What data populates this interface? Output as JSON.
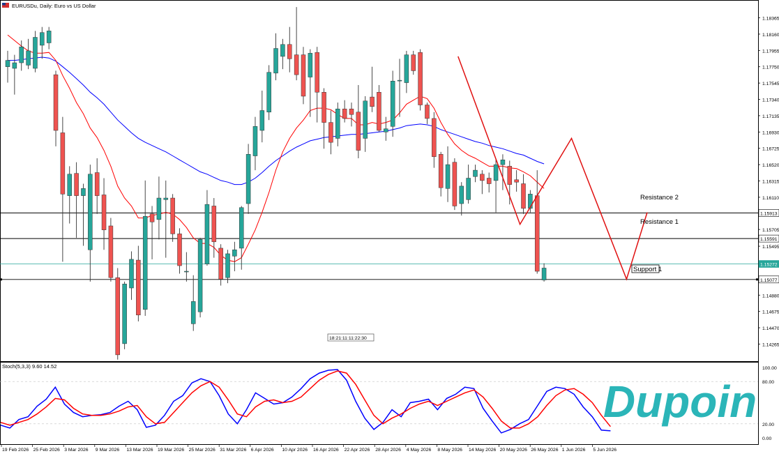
{
  "header": {
    "symbol_title": "EURUSDu, Daily:  Euro vs US Dollar"
  },
  "indicator": {
    "label": "Stoch(5,3,3) 9.60 14.52",
    "levels": [
      "100.00",
      "20.00",
      "0.00"
    ]
  },
  "annotations": {
    "resistance_2": "Resistance 2",
    "resistance_1": "Resistance 1",
    "support_1": "Support 1",
    "time_box": "18:21:11:11:22:30"
  },
  "watermark": {
    "text": "Dupoin",
    "color": "#2bb5b8"
  },
  "colors": {
    "bull": "#26a69a",
    "bear": "#ef5350",
    "ma_fast": "#ff0000",
    "ma_slow": "#0000ff",
    "stoch_k": "#0000ff",
    "stoch_d": "#ff0000",
    "current_price_line": "#26a69a"
  },
  "chart_data": [
    {
      "type": "candlestick",
      "title": "EURUSDu, Daily:  Euro vs US Dollar",
      "y_ticks": [
        "1.18365",
        "1.18160",
        "1.17955",
        "1.17750",
        "1.17545",
        "1.17340",
        "1.17135",
        "1.16930",
        "1.16725",
        "1.16520",
        "1.16315",
        "1.16110",
        "1.15705",
        "1.15495",
        "1.14880",
        "1.14675",
        "1.14470",
        "1.14265"
      ],
      "y_range": [
        1.1405,
        1.1858
      ],
      "price_labels": [
        {
          "value": 1.15913,
          "label": "1.15913",
          "style": "resistance"
        },
        {
          "value": 1.15591,
          "label": "1.15591",
          "style": "resistance"
        },
        {
          "value": 1.15272,
          "label": "1.15272",
          "style": "current"
        },
        {
          "value": 1.15077,
          "label": "1.15077",
          "style": "support"
        }
      ],
      "x_labels": [
        "19 Feb 2026",
        "25 Feb 2026",
        "3 Mar 2026",
        "9 Mar 2026",
        "13 Mar 2026",
        "19 Mar 2026",
        "25 Mar 2026",
        "31 Mar 2026",
        "6 Apr 2026",
        "10 Apr 2026",
        "16 Apr 2026",
        "22 Apr 2026",
        "28 Apr 2026",
        "4 May 2026",
        "8 May 2026",
        "14 May 2026",
        "20 May 2026",
        "26 May 2026",
        "1 Jun 2026",
        "5 Jun 2026"
      ],
      "candles": [
        {
          "o": 1.1775,
          "h": 1.1795,
          "l": 1.1755,
          "c": 1.1783
        },
        {
          "o": 1.1773,
          "h": 1.179,
          "l": 1.174,
          "c": 1.178
        },
        {
          "o": 1.178,
          "h": 1.1808,
          "l": 1.177,
          "c": 1.18
        },
        {
          "o": 1.1777,
          "h": 1.181,
          "l": 1.1772,
          "c": 1.1795
        },
        {
          "o": 1.1773,
          "h": 1.182,
          "l": 1.1768,
          "c": 1.1812
        },
        {
          "o": 1.1802,
          "h": 1.1825,
          "l": 1.1785,
          "c": 1.1818
        },
        {
          "o": 1.1805,
          "h": 1.1825,
          "l": 1.1797,
          "c": 1.182
        },
        {
          "o": 1.1765,
          "h": 1.177,
          "l": 1.1675,
          "c": 1.1695
        },
        {
          "o": 1.1692,
          "h": 1.1712,
          "l": 1.153,
          "c": 1.1615
        },
        {
          "o": 1.1613,
          "h": 1.165,
          "l": 1.1578,
          "c": 1.164
        },
        {
          "o": 1.1641,
          "h": 1.1655,
          "l": 1.156,
          "c": 1.1613
        },
        {
          "o": 1.1613,
          "h": 1.1628,
          "l": 1.155,
          "c": 1.1622
        },
        {
          "o": 1.1545,
          "h": 1.1652,
          "l": 1.1505,
          "c": 1.164
        },
        {
          "o": 1.1642,
          "h": 1.166,
          "l": 1.159,
          "c": 1.1613
        },
        {
          "o": 1.1614,
          "h": 1.1635,
          "l": 1.1545,
          "c": 1.157
        },
        {
          "o": 1.1575,
          "h": 1.1585,
          "l": 1.1505,
          "c": 1.151
        },
        {
          "o": 1.151,
          "h": 1.1522,
          "l": 1.1407,
          "c": 1.1413
        },
        {
          "o": 1.1427,
          "h": 1.1505,
          "l": 1.142,
          "c": 1.1502
        },
        {
          "o": 1.1497,
          "h": 1.1543,
          "l": 1.1482,
          "c": 1.1533
        },
        {
          "o": 1.1532,
          "h": 1.155,
          "l": 1.1455,
          "c": 1.1463
        },
        {
          "o": 1.147,
          "h": 1.1632,
          "l": 1.1462,
          "c": 1.1587
        },
        {
          "o": 1.159,
          "h": 1.16,
          "l": 1.1533,
          "c": 1.158
        },
        {
          "o": 1.1583,
          "h": 1.1637,
          "l": 1.1558,
          "c": 1.161
        },
        {
          "o": 1.1608,
          "h": 1.1632,
          "l": 1.1535,
          "c": 1.161
        },
        {
          "o": 1.161,
          "h": 1.1615,
          "l": 1.1555,
          "c": 1.1565
        },
        {
          "o": 1.1565,
          "h": 1.1572,
          "l": 1.1515,
          "c": 1.1525
        },
        {
          "o": 1.1518,
          "h": 1.1542,
          "l": 1.1505,
          "c": 1.1518
        },
        {
          "o": 1.1452,
          "h": 1.1513,
          "l": 1.1443,
          "c": 1.148
        },
        {
          "o": 1.1467,
          "h": 1.156,
          "l": 1.146,
          "c": 1.1558
        },
        {
          "o": 1.1527,
          "h": 1.162,
          "l": 1.1525,
          "c": 1.1602
        },
        {
          "o": 1.16,
          "h": 1.161,
          "l": 1.1535,
          "c": 1.1555
        },
        {
          "o": 1.1547,
          "h": 1.1552,
          "l": 1.15,
          "c": 1.1508
        },
        {
          "o": 1.151,
          "h": 1.1545,
          "l": 1.1503,
          "c": 1.154
        },
        {
          "o": 1.1537,
          "h": 1.1555,
          "l": 1.1518,
          "c": 1.1545
        },
        {
          "o": 1.1547,
          "h": 1.16,
          "l": 1.152,
          "c": 1.1598
        },
        {
          "o": 1.1603,
          "h": 1.1678,
          "l": 1.159,
          "c": 1.1665
        },
        {
          "o": 1.1663,
          "h": 1.1712,
          "l": 1.1645,
          "c": 1.17
        },
        {
          "o": 1.1695,
          "h": 1.1745,
          "l": 1.168,
          "c": 1.172
        },
        {
          "o": 1.1718,
          "h": 1.1777,
          "l": 1.1708,
          "c": 1.1768
        },
        {
          "o": 1.1767,
          "h": 1.1817,
          "l": 1.1758,
          "c": 1.1798
        },
        {
          "o": 1.1788,
          "h": 1.181,
          "l": 1.1772,
          "c": 1.1803
        },
        {
          "o": 1.1803,
          "h": 1.1825,
          "l": 1.1768,
          "c": 1.1785
        },
        {
          "o": 1.179,
          "h": 1.185,
          "l": 1.1758,
          "c": 1.1765
        },
        {
          "o": 1.179,
          "h": 1.18,
          "l": 1.1728,
          "c": 1.1738
        },
        {
          "o": 1.1762,
          "h": 1.1797,
          "l": 1.1712,
          "c": 1.1792
        },
        {
          "o": 1.1793,
          "h": 1.18,
          "l": 1.1705,
          "c": 1.1743
        },
        {
          "o": 1.1743,
          "h": 1.1748,
          "l": 1.1672,
          "c": 1.1705
        },
        {
          "o": 1.1705,
          "h": 1.172,
          "l": 1.1665,
          "c": 1.168
        },
        {
          "o": 1.1685,
          "h": 1.173,
          "l": 1.1675,
          "c": 1.1722
        },
        {
          "o": 1.1722,
          "h": 1.1733,
          "l": 1.1705,
          "c": 1.171
        },
        {
          "o": 1.1722,
          "h": 1.173,
          "l": 1.17,
          "c": 1.1715
        },
        {
          "o": 1.1718,
          "h": 1.1752,
          "l": 1.166,
          "c": 1.167
        },
        {
          "o": 1.1685,
          "h": 1.1738,
          "l": 1.1668,
          "c": 1.1732
        },
        {
          "o": 1.1737,
          "h": 1.1775,
          "l": 1.1718,
          "c": 1.1725
        },
        {
          "o": 1.1743,
          "h": 1.1752,
          "l": 1.1693,
          "c": 1.1695
        },
        {
          "o": 1.1693,
          "h": 1.1712,
          "l": 1.1682,
          "c": 1.1697
        },
        {
          "o": 1.17,
          "h": 1.177,
          "l": 1.1687,
          "c": 1.1757
        },
        {
          "o": 1.1758,
          "h": 1.1785,
          "l": 1.1712,
          "c": 1.1758
        },
        {
          "o": 1.1755,
          "h": 1.1795,
          "l": 1.1742,
          "c": 1.179
        },
        {
          "o": 1.179,
          "h": 1.1795,
          "l": 1.1765,
          "c": 1.177
        },
        {
          "o": 1.1793,
          "h": 1.1797,
          "l": 1.172,
          "c": 1.1727
        },
        {
          "o": 1.1727,
          "h": 1.173,
          "l": 1.1703,
          "c": 1.171
        },
        {
          "o": 1.171,
          "h": 1.1718,
          "l": 1.1648,
          "c": 1.1662
        },
        {
          "o": 1.1665,
          "h": 1.1668,
          "l": 1.1612,
          "c": 1.1623
        },
        {
          "o": 1.1622,
          "h": 1.1675,
          "l": 1.1605,
          "c": 1.1652
        },
        {
          "o": 1.1655,
          "h": 1.166,
          "l": 1.1595,
          "c": 1.16
        },
        {
          "o": 1.1603,
          "h": 1.163,
          "l": 1.1588,
          "c": 1.1625
        },
        {
          "o": 1.1608,
          "h": 1.1652,
          "l": 1.1603,
          "c": 1.1635
        },
        {
          "o": 1.1637,
          "h": 1.1652,
          "l": 1.163,
          "c": 1.1645
        },
        {
          "o": 1.164,
          "h": 1.1645,
          "l": 1.1615,
          "c": 1.1632
        },
        {
          "o": 1.1635,
          "h": 1.1642,
          "l": 1.1617,
          "c": 1.1628
        },
        {
          "o": 1.1632,
          "h": 1.1658,
          "l": 1.1592,
          "c": 1.1652
        },
        {
          "o": 1.1652,
          "h": 1.1665,
          "l": 1.162,
          "c": 1.1658
        },
        {
          "o": 1.165,
          "h": 1.1657,
          "l": 1.1602,
          "c": 1.1627
        },
        {
          "o": 1.1633,
          "h": 1.1645,
          "l": 1.1618,
          "c": 1.163
        },
        {
          "o": 1.1628,
          "h": 1.164,
          "l": 1.159,
          "c": 1.1597
        },
        {
          "o": 1.1597,
          "h": 1.162,
          "l": 1.1592,
          "c": 1.1615
        },
        {
          "o": 1.1613,
          "h": 1.1645,
          "l": 1.1515,
          "c": 1.1518
        },
        {
          "o": 1.1507,
          "h": 1.1528,
          "l": 1.1505,
          "c": 1.1522
        }
      ],
      "ma_fast": [
        1.1815,
        1.1808,
        1.1801,
        1.1795,
        1.1792,
        1.1792,
        1.1793,
        1.1783,
        1.1764,
        1.1748,
        1.173,
        1.1716,
        1.1698,
        1.1686,
        1.167,
        1.165,
        1.1625,
        1.161,
        1.16,
        1.1585,
        1.1585,
        1.1588,
        1.159,
        1.1592,
        1.159,
        1.1583,
        1.1573,
        1.156,
        1.1553,
        1.1553,
        1.1548,
        1.1538,
        1.1532,
        1.153,
        1.1535,
        1.1552,
        1.157,
        1.1592,
        1.1617,
        1.1645,
        1.1668,
        1.1685,
        1.1698,
        1.1708,
        1.172,
        1.1723,
        1.1723,
        1.1721,
        1.1715,
        1.171,
        1.171,
        1.1702,
        1.1702,
        1.1705,
        1.1703,
        1.1705,
        1.1708,
        1.1717,
        1.1728,
        1.1733,
        1.1738,
        1.1735,
        1.1723,
        1.1705,
        1.169,
        1.1678,
        1.167,
        1.1664,
        1.166,
        1.1655,
        1.165,
        1.165,
        1.165,
        1.1648,
        1.1647,
        1.1643,
        1.1638,
        1.163,
        1.1622
      ],
      "ma_slow": [
        1.1783,
        1.1783,
        1.1784,
        1.1785,
        1.1786,
        1.1787,
        1.1786,
        1.1782,
        1.1775,
        1.1768,
        1.176,
        1.1752,
        1.1743,
        1.1736,
        1.1728,
        1.1718,
        1.1708,
        1.17,
        1.1692,
        1.1685,
        1.168,
        1.1676,
        1.1672,
        1.1668,
        1.1663,
        1.1658,
        1.1653,
        1.1648,
        1.1643,
        1.164,
        1.1636,
        1.1632,
        1.163,
        1.1627,
        1.1627,
        1.163,
        1.1635,
        1.1642,
        1.165,
        1.1657,
        1.1663,
        1.1669,
        1.1674,
        1.1678,
        1.1682,
        1.1684,
        1.1686,
        1.1687,
        1.1688,
        1.1689,
        1.169,
        1.169,
        1.1691,
        1.1692,
        1.1693,
        1.1694,
        1.1696,
        1.1698,
        1.1701,
        1.1702,
        1.1703,
        1.1702,
        1.17,
        1.1696,
        1.1693,
        1.169,
        1.1687,
        1.1684,
        1.1681,
        1.1679,
        1.1676,
        1.1674,
        1.1672,
        1.1669,
        1.1666,
        1.1664,
        1.166,
        1.1656,
        1.1653
      ],
      "pattern_line": [
        {
          "i": 65.5,
          "y": 1.1788
        },
        {
          "i": 74.5,
          "y": 1.1577
        },
        {
          "i": 82,
          "y": 1.1685
        },
        {
          "i": 90,
          "y": 1.1508
        },
        {
          "i": 93,
          "y": 1.1592
        }
      ]
    },
    {
      "type": "line",
      "title": "Stoch(5,3,3) 9.60 14.52",
      "y_range": [
        0,
        100
      ],
      "y_ticks": [
        "100.00",
        "80.00",
        "20.00",
        "0.00"
      ],
      "series": [
        {
          "name": "",
          "values": [
            18,
            14,
            26,
            30,
            45,
            55,
            72,
            48,
            36,
            30,
            32,
            33,
            36,
            45,
            52,
            40,
            15,
            18,
            32,
            52,
            60,
            78,
            84,
            80,
            60,
            34,
            20,
            40,
            64,
            56,
            48,
            50,
            58,
            70,
            84,
            92,
            96,
            97,
            82,
            52,
            28,
            12,
            22,
            40,
            30,
            50,
            52,
            55,
            40,
            56,
            62,
            72,
            70,
            42,
            24,
            7,
            12,
            20,
            26,
            46,
            66,
            72,
            70,
            62,
            44,
            30,
            11,
            10
          ]
        },
        {
          "name": "",
          "values": [
            22,
            18,
            22,
            26,
            34,
            44,
            56,
            54,
            42,
            34,
            32,
            32,
            34,
            38,
            44,
            46,
            30,
            20,
            22,
            36,
            50,
            64,
            74,
            80,
            72,
            54,
            34,
            30,
            44,
            52,
            54,
            50,
            52,
            58,
            70,
            82,
            90,
            95,
            92,
            76,
            54,
            32,
            20,
            28,
            34,
            42,
            48,
            52,
            46,
            52,
            58,
            64,
            68,
            58,
            42,
            24,
            14,
            14,
            20,
            30,
            46,
            60,
            68,
            70,
            62,
            50,
            32,
            16
          ]
        }
      ]
    }
  ]
}
